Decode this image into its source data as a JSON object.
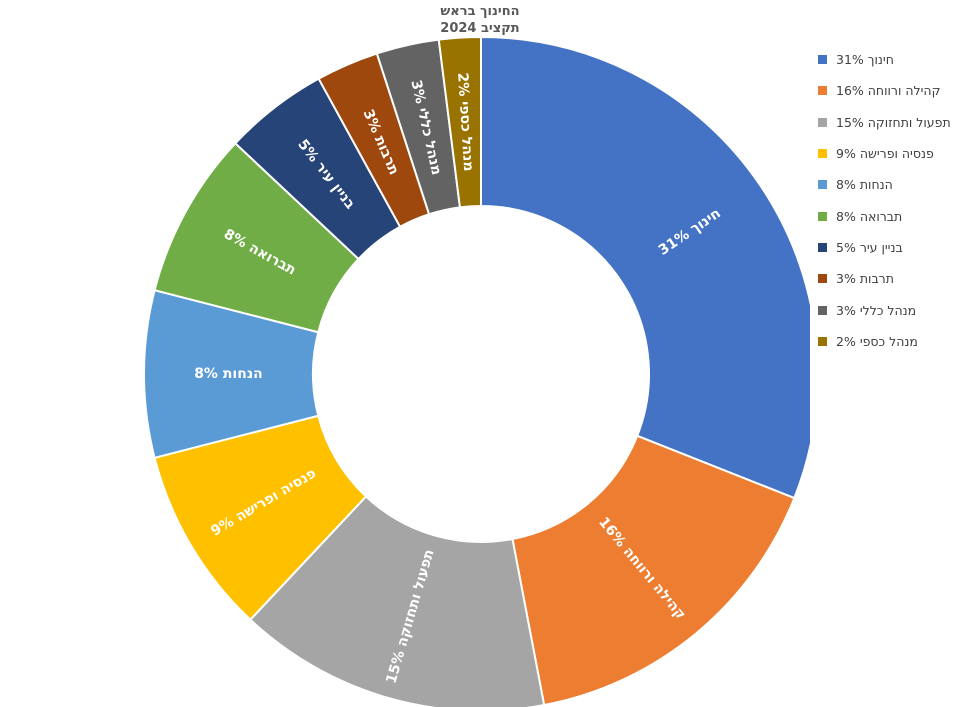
{
  "title": {
    "line1": "החינוך בראש",
    "line2": "תקציב 2024"
  },
  "chart_data": {
    "type": "pie",
    "donut": true,
    "title": "החינוך בראש תקציב 2024",
    "legend_position": "right",
    "slices": [
      {
        "name": "חינוך",
        "value": 31,
        "label": "חינוך 31%",
        "legend": "חינוך 31%",
        "color": "#4472C4"
      },
      {
        "name": "קהילה ורווחה",
        "value": 16,
        "label": "קהילה ורווחה 16%",
        "legend": "קהילה ורווחה 16%",
        "color": "#ED7D31"
      },
      {
        "name": "תפעול ותחזוקה",
        "value": 15,
        "label": "תפעול ותחזוקה 15%",
        "legend": "תפעול ותחזוקה 15%",
        "color": "#A5A5A5"
      },
      {
        "name": "פנסיה ופרישה",
        "value": 9,
        "label": "פנסיה ופרישה 9%",
        "legend": "פנסיה ופרישה 9%",
        "color": "#FFC000"
      },
      {
        "name": "הנחות",
        "value": 8,
        "label": "הנחות 8%",
        "legend": "הנחות 8%",
        "color": "#5B9BD5"
      },
      {
        "name": "תברואה",
        "value": 8,
        "label": "תברואה 8%",
        "legend": "תברואה 8%",
        "color": "#70AD47"
      },
      {
        "name": "בניין עיר",
        "value": 5,
        "label": "בניין עיר 5%",
        "legend": "בניין עיר 5%",
        "color": "#264478"
      },
      {
        "name": "תרבות",
        "value": 3,
        "label": "תרבות 3%",
        "legend": "תרבות 3%",
        "color": "#9E480E"
      },
      {
        "name": "מנהל כללי",
        "value": 3,
        "label": "מנהל כללי 3%",
        "legend": "מנהל כללי 3%",
        "color": "#636363"
      },
      {
        "name": "מנהל כספי",
        "value": 2,
        "label": "מנהל כספי 2%",
        "legend": "מנהל כספי 2%",
        "color": "#997300"
      }
    ]
  }
}
